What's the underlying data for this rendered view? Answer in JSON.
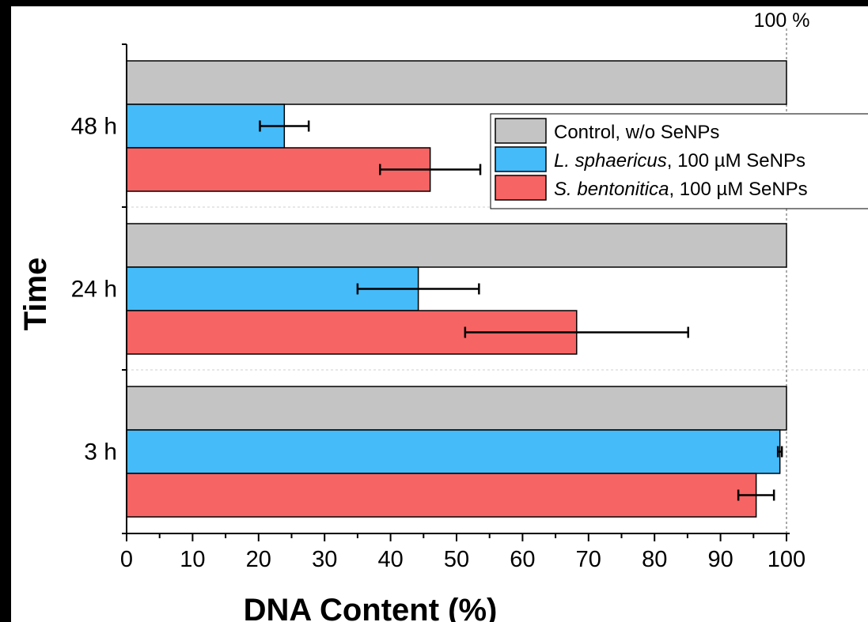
{
  "chart_data": {
    "type": "bar",
    "orientation": "horizontal",
    "categories": [
      "3 h",
      "24 h",
      "48 h"
    ],
    "series": [
      {
        "name": "Control, w/o SeNPs",
        "values": [
          100,
          100,
          100
        ],
        "errors": [
          0,
          0,
          0
        ],
        "color": "#c4c4c4"
      },
      {
        "name_italic": "L. sphaericus",
        "name_rest": ", 100 µM SeNPs",
        "values": [
          99,
          44.2,
          23.9
        ],
        "errors": [
          0.3,
          9.2,
          3.7
        ],
        "color": "#45bbf9"
      },
      {
        "name_italic": "S. bentonitica",
        "name_rest": ", 100 µM SeNPs",
        "values": [
          95.4,
          68.2,
          46.0
        ],
        "errors": [
          2.7,
          16.9,
          7.6
        ],
        "color": "#f76464"
      }
    ],
    "xlabel": "DNA Content (%)",
    "ylabel": "Time",
    "xlim": [
      0,
      100
    ],
    "xticks": [
      0,
      10,
      20,
      30,
      40,
      50,
      60,
      70,
      80,
      90,
      100
    ],
    "reference_line": {
      "x": 100,
      "label": "100 %"
    },
    "grid": false,
    "legend_position": "top-right"
  }
}
